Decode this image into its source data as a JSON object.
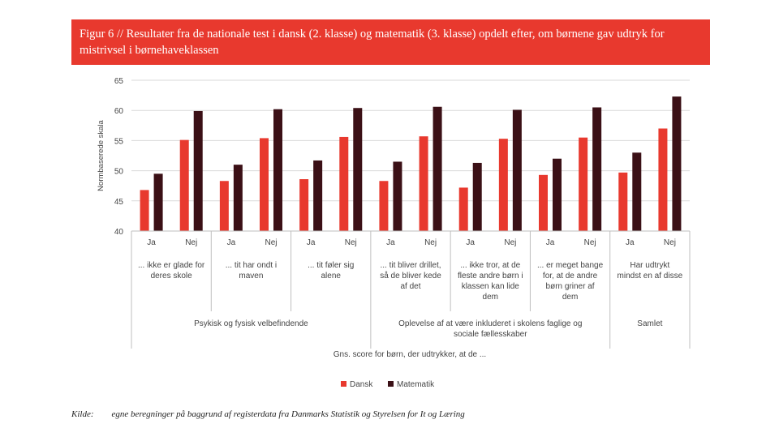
{
  "title": "Figur 6 // Resultater fra de nationale test i dansk (2. klasse) og matematik (3. klasse) opdelt efter, om børnene gav udtryk for mistrivsel i børnehaveklassen",
  "source_label": "Kilde:",
  "source_text": "egne beregninger på baggrund af registerdata fra Danmarks Statistik og Styrelsen for It og Læring",
  "chart_data": {
    "type": "bar",
    "ylabel": "Normbaserede skala",
    "xlabel": "Gns. score for børn, der udtrykker, at de ...",
    "ylim": [
      40,
      65
    ],
    "yticks": [
      40,
      45,
      50,
      55,
      60,
      65
    ],
    "grid": true,
    "legend": "bottom",
    "categories": [
      "Ja",
      "Nej",
      "Ja",
      "Nej",
      "Ja",
      "Nej",
      "Ja",
      "Nej",
      "Ja",
      "Nej",
      "Ja",
      "Nej",
      "Ja",
      "Nej"
    ],
    "subgroups": [
      {
        "label": [
          "... ikke er glade for",
          "deres skole"
        ]
      },
      {
        "label": [
          "... tit har ondt i",
          "maven"
        ]
      },
      {
        "label": [
          "... tit føler sig",
          "alene"
        ]
      },
      {
        "label": [
          "... tit bliver drillet,",
          "så de bliver kede",
          "af det"
        ]
      },
      {
        "label": [
          "... ikke tror, at de",
          "fleste andre børn i",
          "klassen kan lide",
          "dem"
        ]
      },
      {
        "label": [
          "... er meget bange",
          "for, at de andre",
          "børn griner af",
          "dem"
        ]
      },
      {
        "label": [
          "Har udtrykt",
          "mindst en af disse"
        ]
      }
    ],
    "groups": [
      {
        "label": [
          "Psykisk og fysisk velbefindende"
        ],
        "subgroups": 3
      },
      {
        "label": [
          "Oplevelse af at være inkluderet i skolens faglige og",
          "sociale fællesskaber"
        ],
        "subgroups": 3
      },
      {
        "label": [
          "Samlet"
        ],
        "subgroups": 1
      }
    ],
    "series": [
      {
        "name": "Dansk",
        "color": "#e8392e",
        "values": [
          46.8,
          55.1,
          48.3,
          55.4,
          48.6,
          55.6,
          48.3,
          55.7,
          47.2,
          55.3,
          49.3,
          55.5,
          49.7,
          57.0
        ]
      },
      {
        "name": "Matematik",
        "color": "#3b1016",
        "values": [
          49.5,
          59.9,
          51.0,
          60.2,
          51.7,
          60.4,
          51.5,
          60.6,
          51.3,
          60.1,
          52.0,
          60.5,
          53.0,
          62.3
        ]
      }
    ]
  }
}
